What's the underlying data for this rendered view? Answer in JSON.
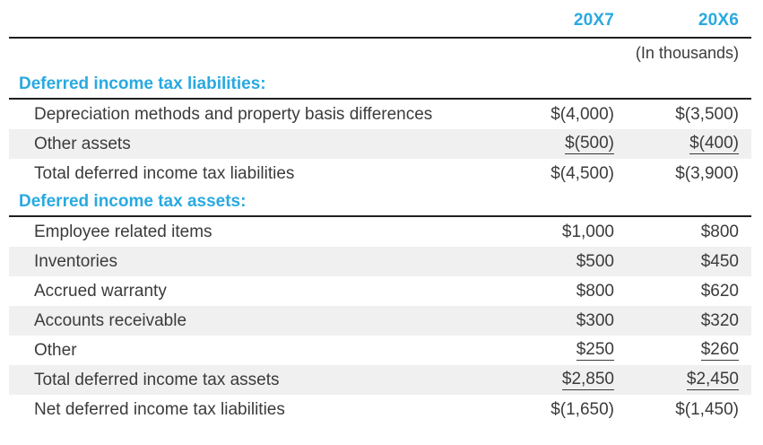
{
  "table": {
    "columns": [
      "20X7",
      "20X6"
    ],
    "units_note": "(In thousands)",
    "sections": [
      {
        "header": "Deferred income tax liabilities:",
        "rows": [
          {
            "label": "Depreciation methods and property basis differences",
            "v1": "$(4,000)",
            "v2": "$(3,500)",
            "underline": false,
            "shaded": false
          },
          {
            "label": "Other assets",
            "v1": "$(500)",
            "v2": "$(400)",
            "underline": true,
            "shaded": true
          },
          {
            "label": "Total deferred income tax liabilities",
            "v1": "$(4,500)",
            "v2": "$(3,900)",
            "underline": false,
            "shaded": false
          }
        ]
      },
      {
        "header": "Deferred income tax assets:",
        "rows": [
          {
            "label": "Employee related items",
            "v1": "$1,000",
            "v2": "$800",
            "underline": false,
            "shaded": false
          },
          {
            "label": "Inventories",
            "v1": "$500",
            "v2": "$450",
            "underline": false,
            "shaded": true
          },
          {
            "label": "Accrued warranty",
            "v1": "$800",
            "v2": "$620",
            "underline": false,
            "shaded": false
          },
          {
            "label": "Accounts receivable",
            "v1": "$300",
            "v2": "$320",
            "underline": false,
            "shaded": true
          },
          {
            "label": "Other",
            "v1": "$250",
            "v2": "$260",
            "underline": true,
            "shaded": false
          },
          {
            "label": "Total deferred income tax assets",
            "v1": "$2,850",
            "v2": "$2,450",
            "underline": true,
            "shaded": true
          },
          {
            "label": "Net deferred income tax liabilities",
            "v1": "$(1,650)",
            "v2": "$(1,450)",
            "underline": false,
            "shaded": false
          }
        ]
      }
    ],
    "colors": {
      "accent": "#29A9E0",
      "text": "#3B3B3B",
      "shaded_row": "#F0F0F0",
      "rule": "#1F1F1F"
    }
  }
}
